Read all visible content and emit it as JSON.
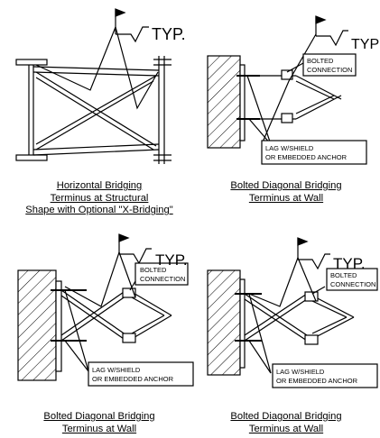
{
  "panels": [
    {
      "typ_label": "TYP.",
      "caption": [
        "Horizontal Bridging",
        "Terminus at Structural",
        "Shape with Optional \"X-Bridging\""
      ]
    },
    {
      "typ_label": "TYP",
      "note_bolted": [
        "BOLTED",
        "CONNECTION"
      ],
      "note_lag": [
        "LAG W/SHIELD",
        "OR EMBEDDED ANCHOR"
      ],
      "caption": [
        "Bolted Diagonal Bridging",
        "Terminus at Wall"
      ]
    },
    {
      "typ_label": "TYP.",
      "note_bolted": [
        "BOLTED",
        "CONNECTION"
      ],
      "note_lag": [
        "LAG W/SHIELD",
        "OR EMBEDDED ANCHOR"
      ],
      "caption": [
        "Bolted Diagonal Bridging",
        "Terminus at Wall"
      ]
    },
    {
      "typ_label": "TYP.",
      "note_bolted": [
        "BOLTED",
        "CONNECTION"
      ],
      "note_lag": [
        "LAG W/SHIELD",
        "OR EMBEDDED ANCHOR"
      ],
      "caption": [
        "Bolted Diagonal Bridging",
        "Terminus at Wall"
      ]
    }
  ]
}
